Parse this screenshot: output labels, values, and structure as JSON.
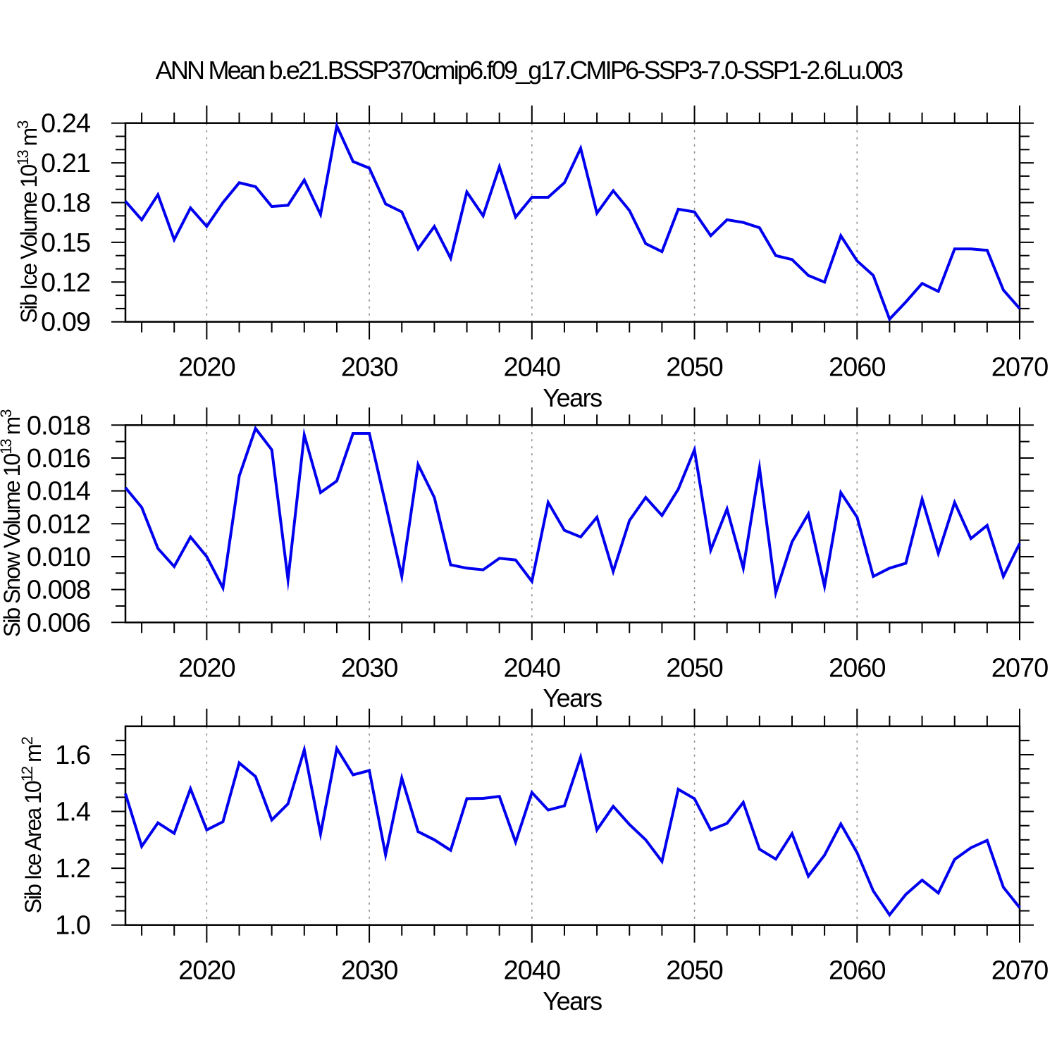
{
  "title": "ANN Mean b.e21.BSSP370cmip6.f09_g17.CMIP6-SSP3-7.0-SSP1-2.6Lu.003",
  "figure": {
    "background": "#ffffff",
    "line_color": "#0000EE",
    "axis_color": "#000000",
    "grid_color": "#888888",
    "text_color": "#000000"
  },
  "x_axis": {
    "label": "Years",
    "start_year": 2015,
    "end_year": 2070,
    "major_ticks": [
      2020,
      2030,
      2040,
      2050,
      2060,
      2070
    ],
    "major_tick_labels": [
      "2020",
      "2030",
      "2040",
      "2050",
      "2060",
      "2070"
    ],
    "minor_tick_step_years": 2,
    "gridline_years": [
      2020,
      2030,
      2040,
      2050,
      2060
    ]
  },
  "chart_data": [
    {
      "type": "line",
      "name": "sib-ice-volume",
      "ylabel": "Sib Ice Volume 10^13 m^3",
      "ylabel_parts": [
        {
          "t": "Sib Ice Volume 10",
          "sup": false
        },
        {
          "t": "13",
          "sup": true
        },
        {
          "t": " m",
          "sup": false
        },
        {
          "t": "3",
          "sup": true
        }
      ],
      "xlabel": "Years",
      "x_start": 2015,
      "x_end": 2070,
      "ylim": [
        0.09,
        0.24
      ],
      "ytick_values": [
        0.09,
        0.12,
        0.15,
        0.18,
        0.21,
        0.24
      ],
      "ytick_labels": [
        "0.09",
        "0.12",
        "0.15",
        "0.18",
        "0.21",
        "0.24"
      ],
      "y_minor_step": 0.01,
      "grid": "vertical-dashed",
      "legend": "none",
      "values": [
        0.181,
        0.167,
        0.186,
        0.152,
        0.176,
        0.162,
        0.18,
        0.195,
        0.192,
        0.177,
        0.178,
        0.197,
        0.171,
        0.238,
        0.211,
        0.206,
        0.179,
        0.173,
        0.145,
        0.162,
        0.138,
        0.188,
        0.17,
        0.207,
        0.169,
        0.184,
        0.184,
        0.195,
        0.221,
        0.172,
        0.189,
        0.174,
        0.149,
        0.143,
        0.175,
        0.173,
        0.155,
        0.167,
        0.165,
        0.161,
        0.14,
        0.137,
        0.125,
        0.12,
        0.155,
        0.136,
        0.125,
        0.092,
        0.105,
        0.119,
        0.113,
        0.145,
        0.145,
        0.144,
        0.114,
        0.1
      ]
    },
    {
      "type": "line",
      "name": "sib-snow-volume",
      "ylabel": "Sib Snow Volume 10^13 m^3",
      "ylabel_parts": [
        {
          "t": "Sib Snow Volume 10",
          "sup": false
        },
        {
          "t": "13",
          "sup": true
        },
        {
          "t": " m",
          "sup": false
        },
        {
          "t": "3",
          "sup": true
        }
      ],
      "xlabel": "Years",
      "x_start": 2015,
      "x_end": 2070,
      "ylim": [
        0.006,
        0.018
      ],
      "ytick_values": [
        0.006,
        0.008,
        0.01,
        0.012,
        0.014,
        0.016,
        0.018
      ],
      "ytick_labels": [
        "0.006",
        "0.008",
        "0.010",
        "0.012",
        "0.014",
        "0.016",
        "0.018"
      ],
      "y_minor_step": 0.001,
      "grid": "vertical-dashed",
      "legend": "none",
      "values": [
        0.0142,
        0.013,
        0.0105,
        0.0094,
        0.0112,
        0.01,
        0.0081,
        0.0149,
        0.0178,
        0.0165,
        0.0086,
        0.0174,
        0.0139,
        0.0146,
        0.0175,
        0.0175,
        0.0132,
        0.0088,
        0.0156,
        0.0136,
        0.0095,
        0.0093,
        0.0092,
        0.0099,
        0.0098,
        0.0085,
        0.0133,
        0.0116,
        0.0112,
        0.0124,
        0.0091,
        0.0122,
        0.0136,
        0.0125,
        0.0141,
        0.0165,
        0.0104,
        0.0129,
        0.0093,
        0.0154,
        0.0078,
        0.0109,
        0.0126,
        0.0082,
        0.0139,
        0.0124,
        0.0088,
        0.0093,
        0.0096,
        0.0135,
        0.0102,
        0.0133,
        0.0111,
        0.0119,
        0.0088,
        0.0108
      ]
    },
    {
      "type": "line",
      "name": "sib-ice-area",
      "ylabel": "Sib Ice Area 10^12 m^2",
      "ylabel_parts": [
        {
          "t": "Sib Ice Area 10",
          "sup": false
        },
        {
          "t": "12",
          "sup": true
        },
        {
          "t": " m",
          "sup": false
        },
        {
          "t": "2",
          "sup": true
        }
      ],
      "xlabel": "Years",
      "x_start": 2015,
      "x_end": 2070,
      "ylim": [
        1.0,
        1.7
      ],
      "ytick_values": [
        1.0,
        1.2,
        1.4,
        1.6
      ],
      "ytick_labels": [
        "1.0",
        "1.2",
        "1.4",
        "1.6"
      ],
      "y_minor_step": 0.05,
      "grid": "vertical-dashed",
      "legend": "none",
      "values": [
        1.463,
        1.277,
        1.36,
        1.323,
        1.48,
        1.335,
        1.364,
        1.571,
        1.523,
        1.37,
        1.427,
        1.617,
        1.321,
        1.622,
        1.529,
        1.544,
        1.247,
        1.518,
        1.329,
        1.3,
        1.263,
        1.445,
        1.446,
        1.453,
        1.292,
        1.467,
        1.405,
        1.42,
        1.591,
        1.335,
        1.418,
        1.354,
        1.3,
        1.224,
        1.478,
        1.445,
        1.335,
        1.358,
        1.432,
        1.267,
        1.232,
        1.322,
        1.172,
        1.246,
        1.356,
        1.255,
        1.12,
        1.036,
        1.108,
        1.158,
        1.113,
        1.231,
        1.272,
        1.298,
        1.133,
        1.061
      ]
    }
  ]
}
